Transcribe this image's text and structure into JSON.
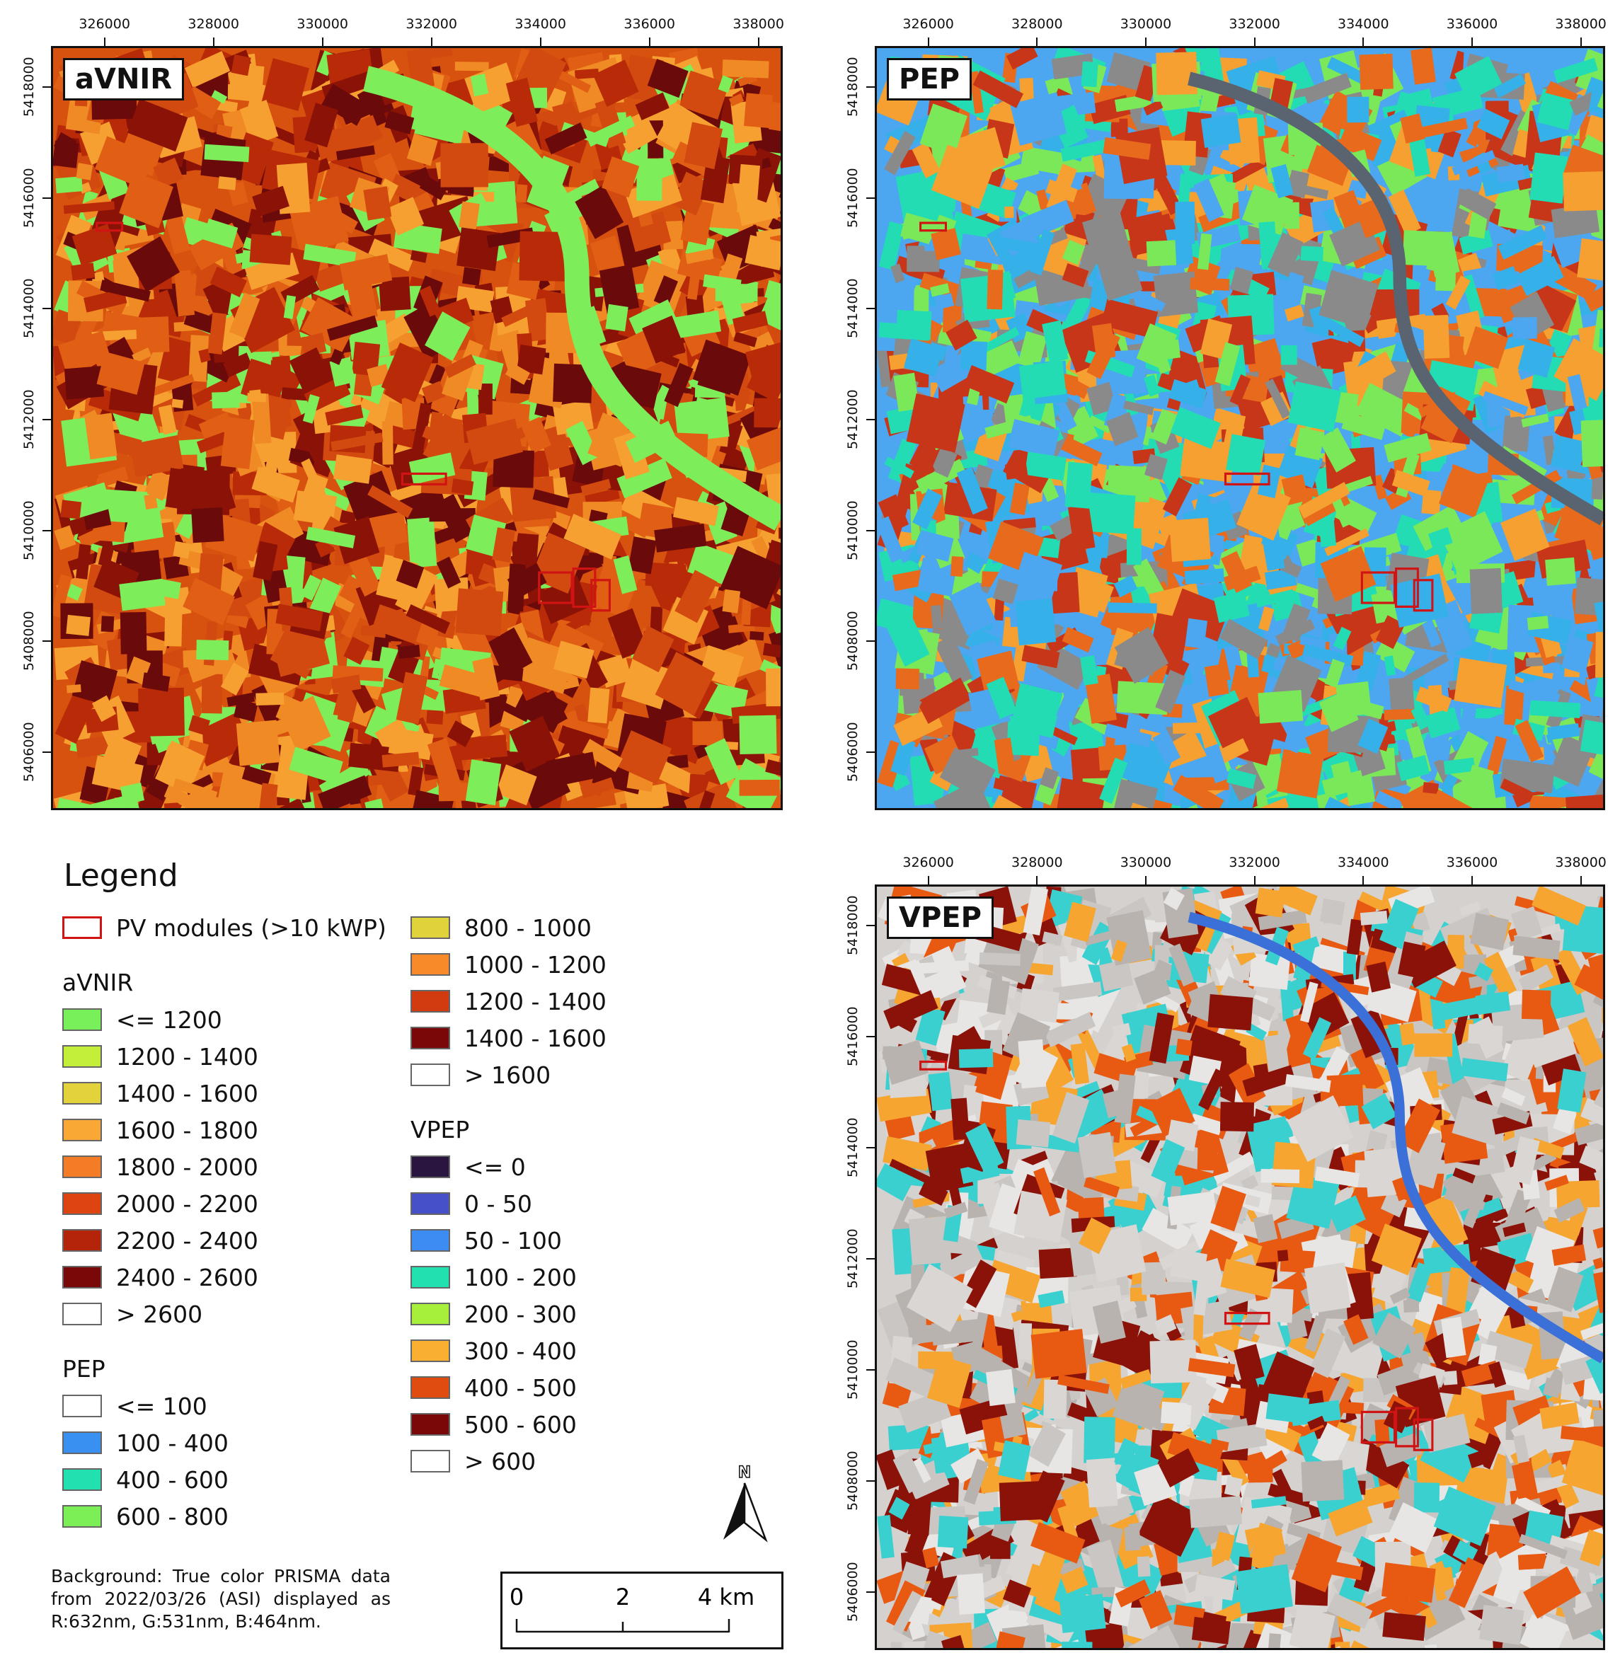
{
  "maps": [
    {
      "id": "avnir",
      "label": "aVNIR",
      "x_ticks": [
        "326000",
        "328000",
        "330000",
        "332000",
        "334000",
        "336000",
        "338000"
      ],
      "y_ticks": [
        "5418000",
        "5416000",
        "5414000",
        "5412000",
        "5410000",
        "5408000",
        "5406000"
      ],
      "palette": [
        "#7ded5a",
        "#e05f14",
        "#f08a25",
        "#b92b08",
        "#8b1206",
        "#d24a0f",
        "#f5a030",
        "#6b0a0a"
      ]
    },
    {
      "id": "pep",
      "label": "PEP",
      "x_ticks": [
        "326000",
        "328000",
        "330000",
        "332000",
        "334000",
        "336000",
        "338000"
      ],
      "y_ticks": [
        "5418000",
        "5416000",
        "5414000",
        "5412000",
        "5410000",
        "5408000",
        "5406000"
      ],
      "palette": [
        "#4da6f0",
        "#23dcb4",
        "#7be85a",
        "#e86a1c",
        "#c8361a",
        "#8a8a8a",
        "#f5a030",
        "#36b0e8"
      ]
    },
    {
      "id": "vpep",
      "label": "VPEP",
      "x_ticks": [
        "326000",
        "328000",
        "330000",
        "332000",
        "334000",
        "336000",
        "338000"
      ],
      "y_ticks": [
        "5418000",
        "5416000",
        "5414000",
        "5412000",
        "5410000",
        "5408000",
        "5406000"
      ],
      "palette": [
        "#d9d6d4",
        "#c9c6c3",
        "#e8e6e4",
        "#b8b3af",
        "#8a1208",
        "#e85a12",
        "#f5a530",
        "#3ad0d0"
      ]
    }
  ],
  "legend": {
    "title": "Legend",
    "pv": {
      "label": "PV modules (>10 kWP)",
      "color": "#d01414"
    },
    "avnir": {
      "heading": "aVNIR",
      "items": [
        {
          "label": "<= 1200",
          "color": "#77f05a"
        },
        {
          "label": "1200 - 1400",
          "color": "#c3ef3a"
        },
        {
          "label": "1400 - 1600",
          "color": "#e4d23c"
        },
        {
          "label": "1600 - 1800",
          "color": "#f9a836"
        },
        {
          "label": "1800 - 2000",
          "color": "#f47c26"
        },
        {
          "label": "2000 - 2200",
          "color": "#de4412"
        },
        {
          "label": "2200 - 2400",
          "color": "#b3240a"
        },
        {
          "label": "2400 - 2600",
          "color": "#7a0808"
        },
        {
          "label": "> 2600",
          "color": "#ffffff"
        }
      ]
    },
    "pep": {
      "heading": "PEP",
      "items": [
        {
          "label": "<= 100",
          "color": "#ffffff"
        },
        {
          "label": "100 - 400",
          "color": "#3a90f0"
        },
        {
          "label": "400 - 600",
          "color": "#22e0b0"
        },
        {
          "label": "600 - 800",
          "color": "#7cee56"
        },
        {
          "label": "800 - 1000",
          "color": "#e0d23a"
        },
        {
          "label": "1000 - 1200",
          "color": "#f98a2a"
        },
        {
          "label": "1200 - 1400",
          "color": "#d23a10"
        },
        {
          "label": "1400 - 1600",
          "color": "#7a0808"
        },
        {
          "label": "> 1600",
          "color": "#ffffff"
        }
      ]
    },
    "vpep": {
      "heading": "VPEP",
      "items": [
        {
          "label": "<= 0",
          "color": "#2a1440"
        },
        {
          "label": "0 - 50",
          "color": "#4650c8"
        },
        {
          "label": "50 - 100",
          "color": "#3c8cf4"
        },
        {
          "label": "100 - 200",
          "color": "#22e0b0"
        },
        {
          "label": "200 - 300",
          "color": "#a6f03c"
        },
        {
          "label": "300 - 400",
          "color": "#f9b032"
        },
        {
          "label": "400 - 500",
          "color": "#e04c10"
        },
        {
          "label": "500 - 600",
          "color": "#7a0808"
        },
        {
          "label": "> 600",
          "color": "#ffffff"
        }
      ]
    }
  },
  "background_note": "Background: True color PRISMA data from 2022/03/26 (ASI) displayed as R:632nm, G:531nm, B:464nm.",
  "scale_bar": {
    "labels": [
      "0",
      "2",
      "4 km"
    ]
  },
  "north_label": "N"
}
